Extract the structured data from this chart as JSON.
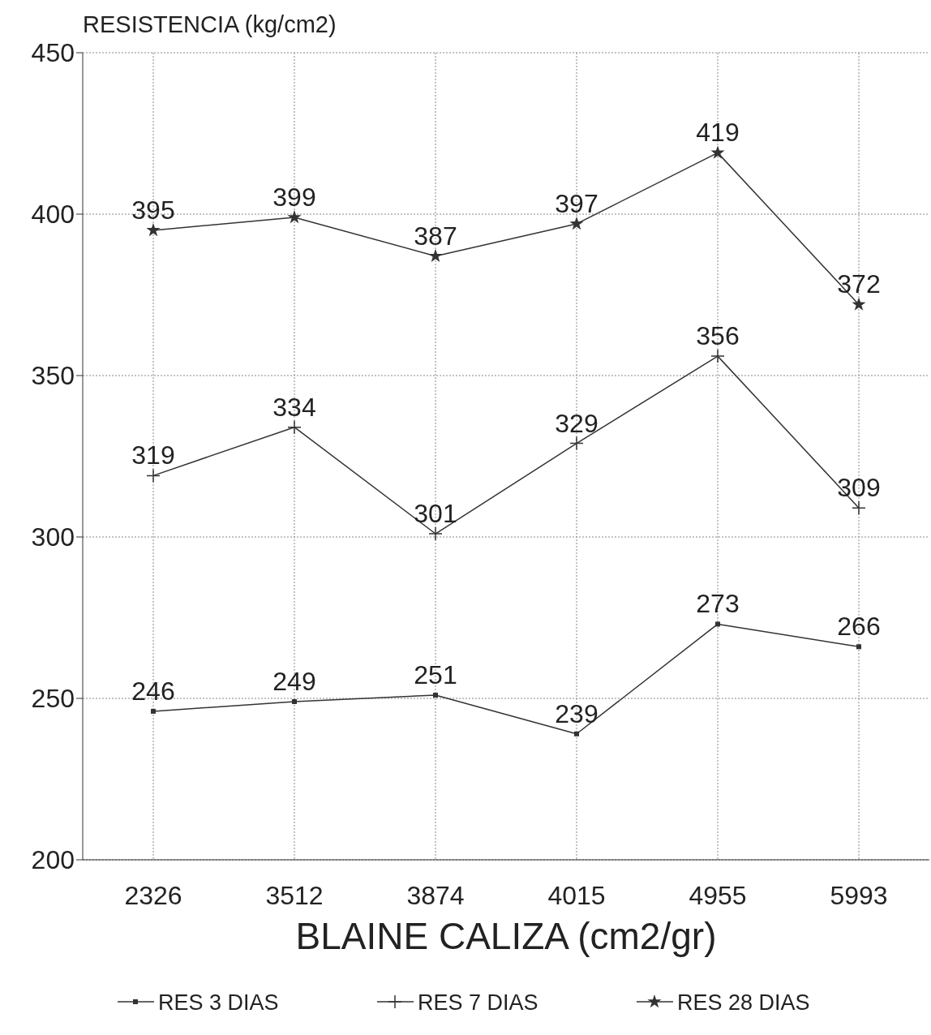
{
  "chart_data": {
    "type": "line",
    "ylabel": "RESISTENCIA (kg/cm2)",
    "xlabel": "BLAINE CALIZA (cm2/gr)",
    "categories": [
      "2326",
      "3512",
      "3874",
      "4015",
      "4955",
      "5993"
    ],
    "series": [
      {
        "name": "RES 3 DIAS",
        "color": "#333333",
        "marker": "square",
        "values": [
          246,
          249,
          251,
          239,
          273,
          266
        ]
      },
      {
        "name": "RES 7 DIAS",
        "color": "#333333",
        "marker": "cross",
        "values": [
          319,
          334,
          301,
          329,
          356,
          309
        ]
      },
      {
        "name": "RES 28 DIAS",
        "color": "#333333",
        "marker": "star",
        "values": [
          395,
          399,
          387,
          397,
          419,
          372
        ]
      }
    ],
    "ylim": [
      200,
      450
    ],
    "yticks": [
      200,
      250,
      300,
      350,
      400,
      450
    ],
    "grid": true,
    "legend": "bottom",
    "data_labels": true,
    "line_style": "solid"
  }
}
